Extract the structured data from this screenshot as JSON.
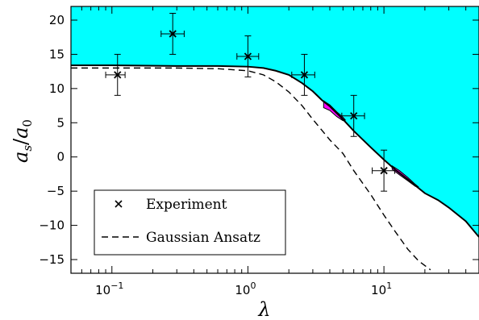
{
  "chart_data": {
    "type": "line",
    "xscale": "log",
    "xlim": [
      0.05,
      50
    ],
    "ylim": [
      -17,
      22
    ],
    "xlabel": "λ",
    "ylabel": "as/a0",
    "ylabel_main": "a",
    "ylabel_sub1": "s",
    "ylabel_den": "a",
    "ylabel_sub2": "0",
    "x_tick_values": [
      0.1,
      1,
      10
    ],
    "x_tick_base": "10",
    "x_tick_exponents": [
      "−1",
      "0",
      "1"
    ],
    "y_ticks": [
      -15,
      -10,
      -5,
      0,
      5,
      10,
      15,
      20
    ],
    "y_tick_labels": [
      "−15",
      "−10",
      "−5",
      "0",
      "5",
      "10",
      "15",
      "20"
    ],
    "legend_position": "bottom-left",
    "series": [
      {
        "name": "Experiment",
        "kind": "scatter-errorbars",
        "points": [
          {
            "x": 0.11,
            "y": 12,
            "xerr_low": 0.09,
            "xerr_high": 0.125,
            "yerr": 3
          },
          {
            "x": 0.28,
            "y": 18,
            "xerr_low": 0.23,
            "xerr_high": 0.34,
            "yerr": 3
          },
          {
            "x": 1.0,
            "y": 14.7,
            "xerr_low": 0.83,
            "xerr_high": 1.2,
            "yerr": 3
          },
          {
            "x": 2.6,
            "y": 12,
            "xerr_low": 2.1,
            "xerr_high": 3.1,
            "yerr": 3
          },
          {
            "x": 6.0,
            "y": 6,
            "xerr_low": 4.9,
            "xerr_high": 7.2,
            "yerr": 3
          },
          {
            "x": 10.0,
            "y": -2,
            "xerr_low": 8.2,
            "xerr_high": 12.0,
            "yerr": 3
          }
        ]
      },
      {
        "name": "Gaussian Ansatz",
        "kind": "dashed-line",
        "x": [
          0.05,
          0.1,
          0.3,
          0.6,
          1.0,
          1.3,
          1.6,
          2.0,
          2.5,
          3.0,
          4.0,
          5.0,
          6.0,
          8.0,
          10.0,
          12.0,
          15.0,
          18.0,
          22.0
        ],
        "y": [
          13.0,
          13.0,
          13.0,
          12.9,
          12.6,
          12.0,
          11.0,
          9.5,
          7.5,
          5.5,
          2.5,
          0.5,
          -2.0,
          -5.5,
          -8.5,
          -10.8,
          -13.5,
          -15.2,
          -16.5
        ]
      },
      {
        "kind": "solid-boundary",
        "x": [
          0.05,
          0.1,
          0.3,
          0.6,
          1.0,
          1.3,
          1.6,
          2.0,
          2.5,
          3.0,
          3.5,
          4.0,
          5.0,
          6.0,
          8.0,
          10.0,
          12.0,
          15.0,
          20.0,
          25.0,
          30.0,
          40.0,
          50.0
        ],
        "y": [
          13.4,
          13.4,
          13.3,
          13.3,
          13.2,
          13.0,
          12.6,
          12.0,
          10.8,
          9.6,
          8.3,
          7.4,
          5.5,
          3.8,
          1.4,
          -0.4,
          -1.8,
          -3.3,
          -5.3,
          -6.3,
          -7.4,
          -9.4,
          -11.7
        ]
      }
    ],
    "colors": {
      "fill_region": "#00ffff",
      "highlight": "#ff00ff",
      "line": "#000000"
    },
    "highlight_regions": [
      {
        "upper": [
          [
            3.6,
            8.2
          ],
          [
            4.0,
            7.6
          ],
          [
            4.5,
            6.6
          ],
          [
            5.0,
            5.8
          ],
          [
            5.2,
            5.4
          ]
        ],
        "lower": [
          [
            3.6,
            7.2
          ],
          [
            4.0,
            6.8
          ],
          [
            4.5,
            5.9
          ],
          [
            5.0,
            5.3
          ],
          [
            5.2,
            5.4
          ]
        ]
      },
      {
        "upper": [
          [
            11.5,
            -1.3
          ],
          [
            13.0,
            -2.0
          ],
          [
            15.0,
            -3.0
          ],
          [
            17.0,
            -4.0
          ],
          [
            18.0,
            -4.4
          ]
        ],
        "lower": [
          [
            11.5,
            -1.8
          ],
          [
            13.0,
            -2.6
          ],
          [
            15.0,
            -3.5
          ],
          [
            17.0,
            -4.3
          ],
          [
            18.0,
            -4.4
          ]
        ]
      }
    ]
  }
}
